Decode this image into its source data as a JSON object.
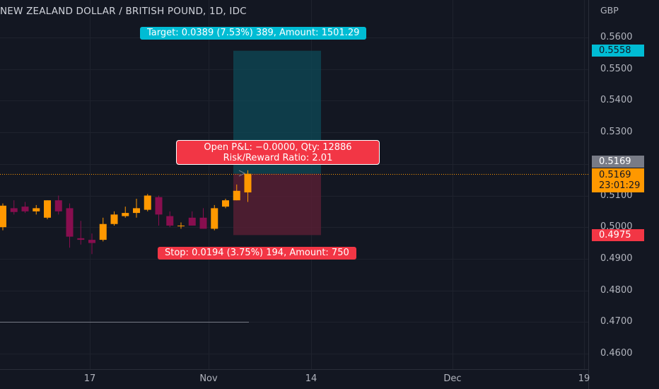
{
  "header": {
    "title": "NEW ZEALAND DOLLAR / BRITISH POUND, 1D, IDC",
    "currency": "GBP"
  },
  "colors": {
    "background": "#131722",
    "up": "#ff9800",
    "down": "#880e4f",
    "target_zone": "#0e4a57",
    "stop_zone": "#5a1f35",
    "target_label": "#00bcd4",
    "stop_label": "#f23645"
  },
  "price_tags": {
    "target_price": "0.5558",
    "entry_price": "0.5169",
    "last_price": "0.5169",
    "countdown": "23:01:29",
    "stop_price": "0.4975"
  },
  "position": {
    "target_label": "Target: 0.0389 (7.53%) 389, Amount: 1501.29",
    "pnl_line1": "Open P&L: −0.0000, Qty: 12886",
    "pnl_line2": "Risk/Reward Ratio: 2.01",
    "stop_label": "Stop: 0.0194 (3.75%) 194, Amount: 750"
  },
  "chart_data": {
    "type": "candlestick",
    "title": "NEW ZEALAND DOLLAR / BRITISH POUND, 1D, IDC",
    "ylabel": "GBP",
    "ylim": [
      0.4575,
      0.57
    ],
    "y_ticks": [
      "0.5600",
      "0.5500",
      "0.5400",
      "0.5300",
      "0.5100",
      "0.5000",
      "0.4900",
      "0.4800",
      "0.4700",
      "0.4600"
    ],
    "x_ticks": [
      "17",
      "Nov",
      "14",
      "Dec",
      "19"
    ],
    "candles": [
      {
        "o": 0.5,
        "h": 0.5075,
        "l": 0.499,
        "c": 0.5068
      },
      {
        "o": 0.506,
        "h": 0.5085,
        "l": 0.504,
        "c": 0.5048
      },
      {
        "o": 0.5065,
        "h": 0.508,
        "l": 0.5045,
        "c": 0.505
      },
      {
        "o": 0.505,
        "h": 0.507,
        "l": 0.504,
        "c": 0.506
      },
      {
        "o": 0.503,
        "h": 0.5085,
        "l": 0.5025,
        "c": 0.5085
      },
      {
        "o": 0.5085,
        "h": 0.51,
        "l": 0.504,
        "c": 0.505
      },
      {
        "o": 0.506,
        "h": 0.5075,
        "l": 0.4935,
        "c": 0.497
      },
      {
        "o": 0.4965,
        "h": 0.502,
        "l": 0.4945,
        "c": 0.496
      },
      {
        "o": 0.496,
        "h": 0.498,
        "l": 0.4915,
        "c": 0.495
      },
      {
        "o": 0.496,
        "h": 0.503,
        "l": 0.4955,
        "c": 0.501
      },
      {
        "o": 0.501,
        "h": 0.505,
        "l": 0.5005,
        "c": 0.504
      },
      {
        "o": 0.5035,
        "h": 0.5065,
        "l": 0.503,
        "c": 0.5045
      },
      {
        "o": 0.5045,
        "h": 0.509,
        "l": 0.503,
        "c": 0.506
      },
      {
        "o": 0.5055,
        "h": 0.5105,
        "l": 0.505,
        "c": 0.51
      },
      {
        "o": 0.5095,
        "h": 0.51,
        "l": 0.5005,
        "c": 0.504
      },
      {
        "o": 0.5035,
        "h": 0.505,
        "l": 0.5,
        "c": 0.5005
      },
      {
        "o": 0.5005,
        "h": 0.5015,
        "l": 0.4995,
        "c": 0.5005
      },
      {
        "o": 0.503,
        "h": 0.505,
        "l": 0.5005,
        "c": 0.5005
      },
      {
        "o": 0.503,
        "h": 0.506,
        "l": 0.4995,
        "c": 0.4995
      },
      {
        "o": 0.4995,
        "h": 0.507,
        "l": 0.499,
        "c": 0.506
      },
      {
        "o": 0.5065,
        "h": 0.509,
        "l": 0.506,
        "c": 0.5085
      },
      {
        "o": 0.5085,
        "h": 0.5135,
        "l": 0.5085,
        "c": 0.5115
      },
      {
        "o": 0.511,
        "h": 0.518,
        "l": 0.508,
        "c": 0.5169
      }
    ],
    "position": {
      "entry": 0.5169,
      "target": 0.5558,
      "stop": 0.4975
    },
    "grid": true
  }
}
